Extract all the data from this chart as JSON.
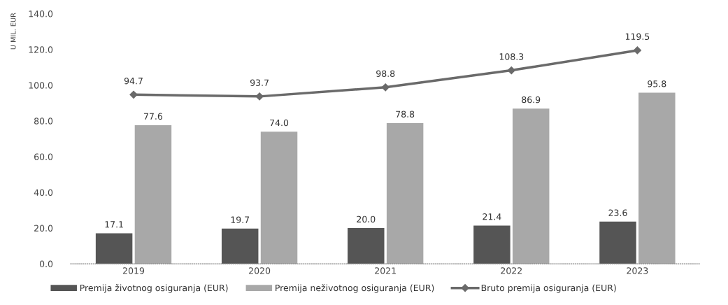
{
  "chart_data": {
    "type": "bar",
    "ylabel": "U MIL. EUR",
    "categories": [
      "2019",
      "2020",
      "2021",
      "2022",
      "2023"
    ],
    "series": [
      {
        "name": "Premija životnog osiguranja (EUR)",
        "color": "#555555",
        "values": [
          17.1,
          19.7,
          20.0,
          21.4,
          23.6
        ],
        "value_labels": [
          "17.1",
          "19.7",
          "20.0",
          "21.4",
          "23.6"
        ]
      },
      {
        "name": "Premija neživotnog osiguranja (EUR)",
        "color": "#a8a8a8",
        "values": [
          77.6,
          74.0,
          78.8,
          86.9,
          95.8
        ],
        "value_labels": [
          "77.6",
          "74.0",
          "78.8",
          "86.9",
          "95.8"
        ]
      },
      {
        "name": "Bruto premija osiguranja (EUR)",
        "type": "line",
        "color": "#6a6a6a",
        "values": [
          94.7,
          93.7,
          98.8,
          108.3,
          119.5
        ],
        "value_labels": [
          "94.7",
          "93.7",
          "98.8",
          "108.3",
          "119.5"
        ],
        "marker": "diamond"
      }
    ],
    "ylim": [
      0,
      140
    ],
    "yticks": [
      {
        "value": 0,
        "label": "0.0"
      },
      {
        "value": 20,
        "label": "20.0"
      },
      {
        "value": 40,
        "label": "40.0"
      },
      {
        "value": 60,
        "label": "60.0"
      },
      {
        "value": 80,
        "label": "80.0"
      },
      {
        "value": 100,
        "label": "100.0"
      },
      {
        "value": 120,
        "label": "120.0"
      },
      {
        "value": 140,
        "label": "140.0"
      }
    ],
    "legend": "bottom left"
  }
}
